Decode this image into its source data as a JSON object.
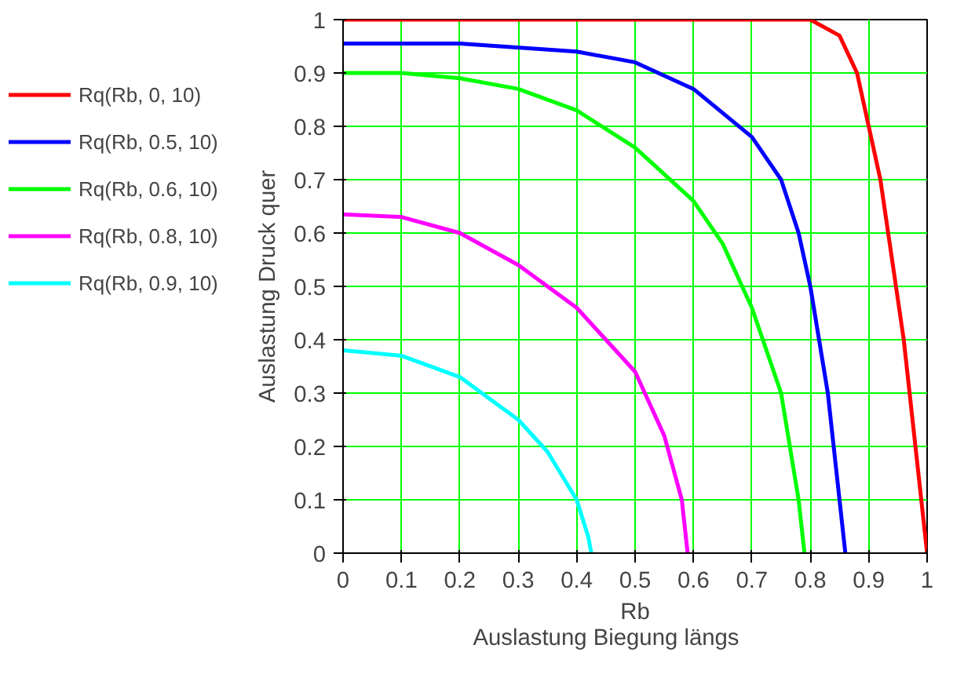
{
  "chart_data": {
    "type": "line",
    "xlabel": "Rb",
    "ylabel": "Auslastung Druck quer",
    "annotations": [
      "Auslastung Biegung längs"
    ],
    "xlim": [
      0,
      1
    ],
    "ylim": [
      0,
      1
    ],
    "xticks": [
      0,
      0.1,
      0.2,
      0.3,
      0.4,
      0.5,
      0.6,
      0.7,
      0.8,
      0.9,
      1
    ],
    "yticks": [
      0,
      0.1,
      0.2,
      0.3,
      0.4,
      0.5,
      0.6,
      0.7,
      0.8,
      0.9,
      1
    ],
    "grid": true,
    "legend": "left",
    "marker": "none",
    "line_style": "solid",
    "series": [
      {
        "name": "Rq(Rb, 0, 10)",
        "color": "#ff0000",
        "x": [
          0,
          0.8,
          0.85,
          0.88,
          0.9,
          0.92,
          0.94,
          0.96,
          0.98,
          1
        ],
        "values": [
          1,
          1,
          0.97,
          0.9,
          0.8,
          0.7,
          0.55,
          0.4,
          0.2,
          0
        ]
      },
      {
        "name": "Rq(Rb, 0.5, 10)",
        "color": "#0000ff",
        "x": [
          0,
          0.2,
          0.4,
          0.5,
          0.6,
          0.7,
          0.75,
          0.78,
          0.8,
          0.83,
          0.85,
          0.86
        ],
        "values": [
          0.955,
          0.955,
          0.94,
          0.92,
          0.87,
          0.78,
          0.7,
          0.6,
          0.5,
          0.3,
          0.1,
          0
        ]
      },
      {
        "name": "Rq(Rb, 0.6, 10)",
        "color": "#00ff00",
        "x": [
          0,
          0.1,
          0.2,
          0.3,
          0.4,
          0.5,
          0.6,
          0.65,
          0.7,
          0.75,
          0.78,
          0.79
        ],
        "values": [
          0.9,
          0.9,
          0.89,
          0.87,
          0.83,
          0.76,
          0.66,
          0.58,
          0.46,
          0.3,
          0.1,
          0
        ]
      },
      {
        "name": "Rq(Rb, 0.8, 10)",
        "color": "#ff00ff",
        "x": [
          0,
          0.1,
          0.2,
          0.3,
          0.4,
          0.5,
          0.55,
          0.58,
          0.59
        ],
        "values": [
          0.635,
          0.63,
          0.6,
          0.54,
          0.46,
          0.34,
          0.22,
          0.1,
          0
        ]
      },
      {
        "name": "Rq(Rb, 0.9, 10)",
        "color": "#00ffff",
        "x": [
          0,
          0.1,
          0.2,
          0.3,
          0.35,
          0.4,
          0.42,
          0.425
        ],
        "values": [
          0.38,
          0.37,
          0.33,
          0.25,
          0.19,
          0.1,
          0.03,
          0
        ]
      }
    ]
  }
}
